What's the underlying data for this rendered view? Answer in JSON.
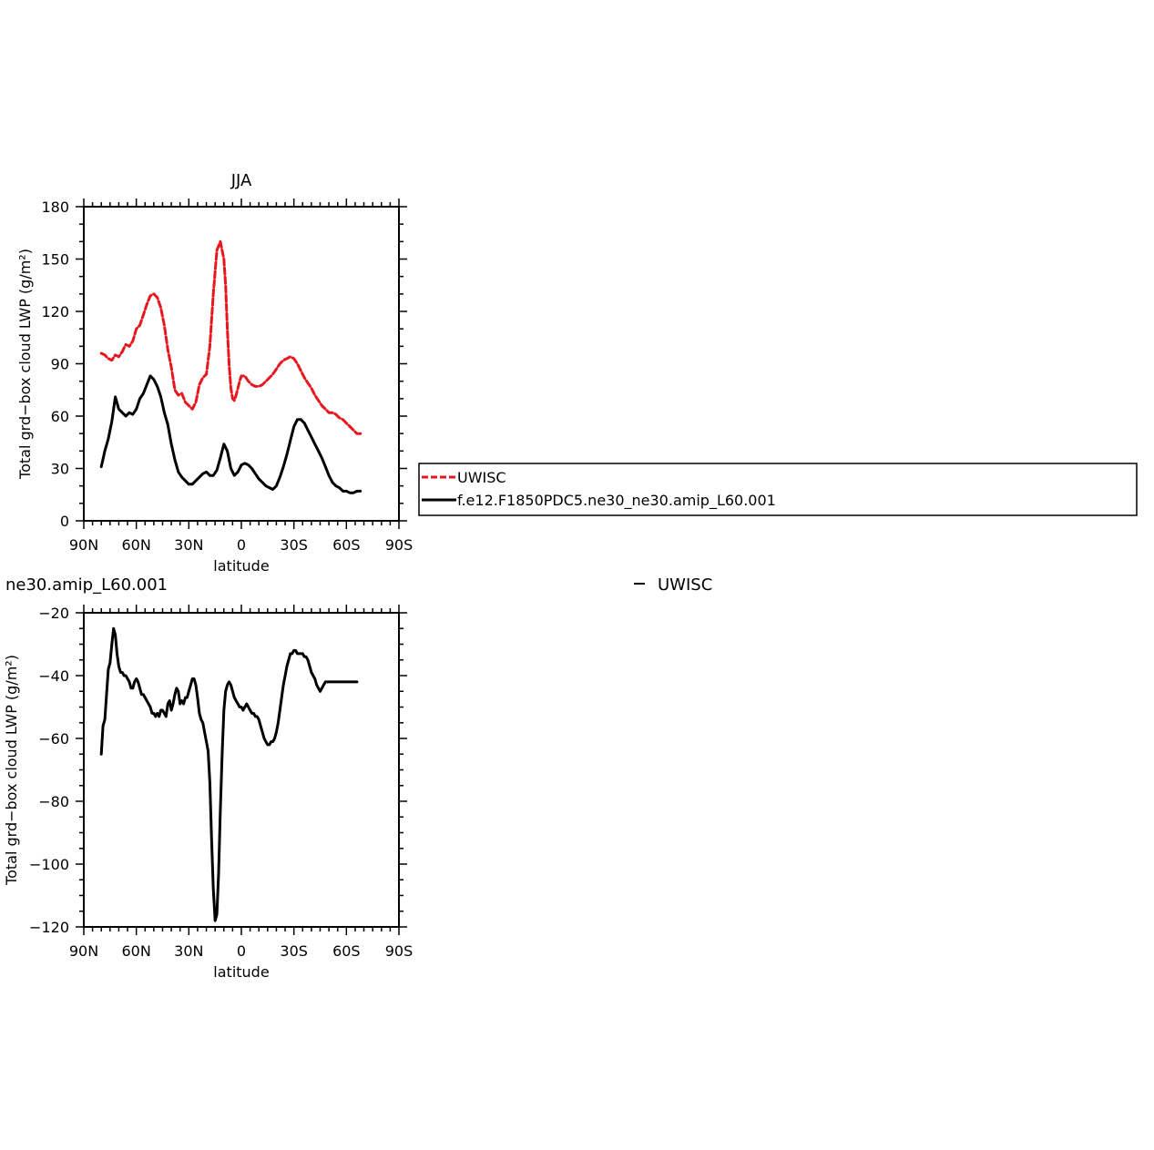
{
  "chart_data": [
    {
      "type": "line",
      "title": "JJA",
      "xlabel": "latitude",
      "ylabel": "Total grd−box cloud LWP (g/m²)",
      "xlim": [
        90,
        -90
      ],
      "ylim": [
        0,
        180
      ],
      "x_ticks": [
        90,
        60,
        30,
        0,
        -30,
        -60,
        -90
      ],
      "x_tick_labels": [
        "90N",
        "60N",
        "30N",
        "0",
        "30S",
        "60S",
        "90S"
      ],
      "y_ticks": [
        0,
        30,
        60,
        90,
        120,
        150,
        180
      ],
      "y_tick_labels": [
        "0",
        "30",
        "60",
        "90",
        "120",
        "150",
        "180"
      ],
      "grid": false,
      "legend": {
        "placement": "right",
        "entries": [
          "UWISC",
          "f.e12.F1850PDC5.ne30_ne30.amip_L60.001"
        ]
      },
      "series": [
        {
          "name": "UWISC",
          "color": "#e8161e",
          "dash": "dashed",
          "x": [
            80,
            78,
            76,
            74,
            72,
            70,
            68,
            66,
            64,
            62,
            60,
            58,
            56,
            54,
            52,
            50,
            48,
            46,
            44,
            42,
            40,
            38,
            36,
            34,
            32,
            30,
            28,
            26,
            24,
            22,
            20,
            18,
            16,
            14,
            12,
            10,
            9,
            8,
            7,
            6,
            5,
            4,
            3,
            2,
            1,
            0,
            -2,
            -4,
            -6,
            -8,
            -10,
            -12,
            -14,
            -16,
            -18,
            -20,
            -22,
            -24,
            -26,
            -28,
            -30,
            -32,
            -34,
            -36,
            -38,
            -40,
            -42,
            -44,
            -46,
            -48,
            -50,
            -52,
            -54,
            -56,
            -58,
            -60,
            -62,
            -64,
            -66,
            -68
          ],
          "y": [
            96,
            95,
            93,
            92,
            95,
            94,
            97,
            101,
            100,
            103,
            110,
            112,
            118,
            124,
            129,
            130,
            128,
            122,
            112,
            98,
            88,
            75,
            72,
            73,
            68,
            66,
            64,
            68,
            78,
            82,
            84,
            100,
            130,
            155,
            160,
            150,
            135,
            110,
            90,
            76,
            70,
            69,
            72,
            76,
            80,
            83,
            83,
            80,
            78,
            77,
            77,
            78,
            80,
            82,
            84,
            87,
            90,
            92,
            93,
            94,
            93,
            90,
            86,
            82,
            79,
            76,
            72,
            69,
            66,
            64,
            62,
            62,
            61,
            59,
            58,
            56,
            54,
            52,
            50,
            50
          ]
        },
        {
          "name": "f.e12.F1850PDC5.ne30_ne30.amip_L60.001",
          "color": "#000000",
          "dash": "solid",
          "x": [
            80,
            78,
            76,
            74,
            72,
            70,
            68,
            66,
            64,
            62,
            60,
            58,
            56,
            54,
            52,
            50,
            48,
            46,
            44,
            42,
            40,
            38,
            36,
            34,
            32,
            30,
            28,
            26,
            24,
            22,
            20,
            18,
            16,
            14,
            12,
            10,
            8,
            6,
            4,
            2,
            0,
            -2,
            -4,
            -6,
            -8,
            -10,
            -12,
            -14,
            -16,
            -18,
            -20,
            -22,
            -24,
            -26,
            -28,
            -30,
            -32,
            -34,
            -36,
            -38,
            -40,
            -42,
            -44,
            -46,
            -48,
            -50,
            -52,
            -54,
            -56,
            -58,
            -60,
            -62,
            -64,
            -66,
            -68
          ],
          "y": [
            31,
            40,
            47,
            57,
            71,
            64,
            62,
            60,
            62,
            61,
            64,
            70,
            73,
            78,
            83,
            81,
            77,
            71,
            62,
            55,
            44,
            35,
            28,
            25,
            23,
            21,
            21,
            23,
            25,
            27,
            28,
            26,
            26,
            29,
            36,
            44,
            40,
            30,
            26,
            28,
            32,
            33,
            32,
            30,
            27,
            24,
            22,
            20,
            19,
            18,
            20,
            25,
            31,
            38,
            46,
            54,
            58,
            58,
            56,
            52,
            48,
            44,
            40,
            36,
            31,
            26,
            22,
            20,
            19,
            17,
            17,
            16,
            16,
            17,
            17
          ]
        }
      ]
    },
    {
      "type": "line",
      "title": "ne30.amip_L60.001",
      "xlabel": "latitude",
      "ylabel": "Total grd−box cloud LWP (g/m²)",
      "xlim": [
        90,
        -90
      ],
      "ylim": [
        -120,
        -20
      ],
      "x_ticks": [
        90,
        60,
        30,
        0,
        -30,
        -60,
        -90
      ],
      "x_tick_labels": [
        "90N",
        "60N",
        "30N",
        "0",
        "30S",
        "60S",
        "90S"
      ],
      "y_ticks": [
        -120,
        -100,
        -80,
        -60,
        -40,
        -20
      ],
      "y_tick_labels": [
        "−120",
        "−100",
        "−80",
        "−60",
        "−40",
        "−20"
      ],
      "grid": false,
      "legend": {
        "placement": "right",
        "entries": [
          "UWISC"
        ]
      },
      "series": [
        {
          "color": "#000000",
          "dash": "solid",
          "x": [
            80,
            79,
            78,
            77,
            76,
            75,
            74,
            73,
            72,
            71,
            70,
            69,
            68,
            67,
            66,
            65,
            64,
            63,
            62,
            61,
            60,
            59,
            58,
            57,
            56,
            55,
            54,
            53,
            52,
            51,
            50,
            49,
            48,
            47,
            46,
            45,
            44,
            43,
            42,
            41,
            40,
            39,
            38,
            37,
            36,
            35,
            34,
            33,
            32,
            31,
            30,
            29,
            28,
            27,
            26,
            25,
            24,
            23,
            22,
            21,
            20,
            19,
            18,
            17,
            16,
            15,
            14,
            13,
            12,
            11,
            10,
            9,
            8,
            7,
            6,
            5,
            4,
            3,
            2,
            1,
            0,
            -1,
            -2,
            -3,
            -4,
            -5,
            -6,
            -7,
            -8,
            -9,
            -10,
            -11,
            -12,
            -13,
            -14,
            -15,
            -16,
            -17,
            -18,
            -19,
            -20,
            -21,
            -22,
            -23,
            -24,
            -25,
            -26,
            -27,
            -28,
            -29,
            -30,
            -31,
            -32,
            -33,
            -34,
            -35,
            -36,
            -37,
            -38,
            -39,
            -40,
            -41,
            -42,
            -43,
            -44,
            -45,
            -46,
            -47,
            -48,
            -49,
            -50,
            -51,
            -52,
            -53,
            -54,
            -55,
            -56,
            -57,
            -58,
            -59,
            -60,
            -61,
            -62,
            -63,
            -64,
            -65,
            -66
          ],
          "y": [
            -65,
            -56,
            -54,
            -46,
            -38,
            -36,
            -30,
            -25,
            -27,
            -33,
            -37,
            -39,
            -39,
            -40,
            -40,
            -41,
            -42,
            -44,
            -44,
            -42,
            -41,
            -42,
            -44,
            -46,
            -46,
            -47,
            -48,
            -49,
            -50,
            -52,
            -52,
            -53,
            -52,
            -53,
            -51,
            -51,
            -52,
            -53,
            -49,
            -48,
            -51,
            -49,
            -46,
            -44,
            -45,
            -49,
            -48,
            -49,
            -47,
            -47,
            -45,
            -43,
            -41,
            -41,
            -43,
            -47,
            -52,
            -54,
            -55,
            -58,
            -61,
            -64,
            -74,
            -92,
            -108,
            -118,
            -116,
            -103,
            -83,
            -65,
            -51,
            -45,
            -43,
            -42,
            -43,
            -45,
            -47,
            -48,
            -49,
            -50,
            -50,
            -51,
            -50,
            -49,
            -50,
            -51,
            -52,
            -52,
            -53,
            -53,
            -54,
            -56,
            -58,
            -60,
            -61,
            -62,
            -62,
            -61,
            -61,
            -60,
            -58,
            -55,
            -51,
            -47,
            -43,
            -40,
            -37,
            -35,
            -33,
            -33,
            -32,
            -32,
            -33,
            -33,
            -33,
            -33,
            -34,
            -34,
            -35,
            -37,
            -39,
            -40,
            -41,
            -43,
            -44,
            -45,
            -44,
            -43,
            -42,
            -42,
            -42,
            -42,
            -42,
            -42,
            -42,
            -42,
            -42,
            -42,
            -42,
            -42,
            -42,
            -42,
            -42,
            -42,
            -42,
            -42,
            -42
          ]
        }
      ]
    }
  ]
}
